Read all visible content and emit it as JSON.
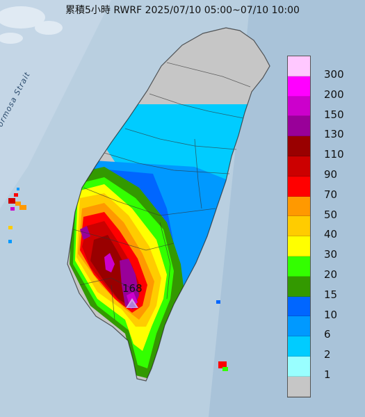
{
  "title": "累積5小時 RWRF 2025/07/10 05:00~07/10 10:00",
  "strait_label": "Formosa Strait",
  "max_value": "168",
  "legend": [
    {
      "label": "300",
      "color": "#ffc8ff"
    },
    {
      "label": "200",
      "color": "#ff00ff"
    },
    {
      "label": "150",
      "color": "#cc00cc"
    },
    {
      "label": "130",
      "color": "#990099"
    },
    {
      "label": "110",
      "color": "#990000"
    },
    {
      "label": "90",
      "color": "#cc0000"
    },
    {
      "label": "70",
      "color": "#ff0000"
    },
    {
      "label": "50",
      "color": "#ff9900"
    },
    {
      "label": "40",
      "color": "#ffcc00"
    },
    {
      "label": "30",
      "color": "#ffff00"
    },
    {
      "label": "20",
      "color": "#33ff00"
    },
    {
      "label": "15",
      "color": "#339900"
    },
    {
      "label": "10",
      "color": "#0066ff"
    },
    {
      "label": "6",
      "color": "#0099ff"
    },
    {
      "label": "2",
      "color": "#00ccff"
    },
    {
      "label": "1",
      "color": "#99ffff"
    },
    {
      "label": "",
      "color": "#c6c6c6"
    }
  ]
}
